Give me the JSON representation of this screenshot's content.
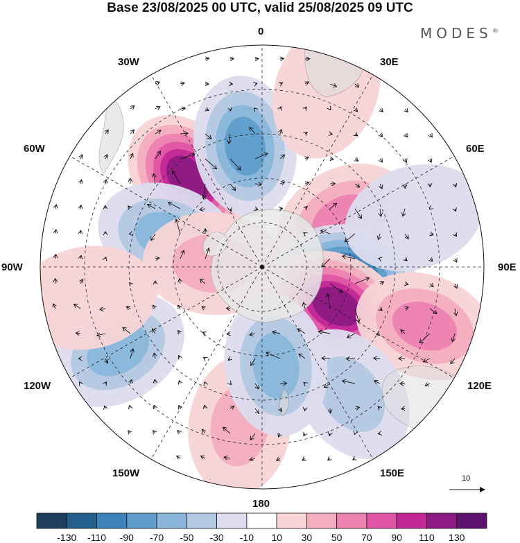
{
  "title": "Base 23/08/2025 00 UTC, valid 25/08/2025 09 UTC",
  "brand": "MODES",
  "brand_mark": "®",
  "longitude_labels": {
    "lon_0": "0",
    "lon_30e": "30E",
    "lon_60e": "60E",
    "lon_90e": "90E",
    "lon_120e": "120E",
    "lon_150e": "150E",
    "lon_180": "180",
    "lon_150w": "150W",
    "lon_120w": "120W",
    "lon_90w": "90W",
    "lon_60w": "60W",
    "lon_30w": "30W"
  },
  "reference_vector": "10",
  "colorbar": {
    "colors": [
      "#1f3d5c",
      "#235f8c",
      "#3d82b8",
      "#5f9ecc",
      "#89b6da",
      "#b3c8e2",
      "#dcdcee",
      "#ffffff",
      "#f8d4d6",
      "#f3aec0",
      "#ec82b0",
      "#e055a6",
      "#c42896",
      "#8c1a82",
      "#5e1270"
    ],
    "labels": [
      "-130",
      "-110",
      "-90",
      "-70",
      "-50",
      "-30",
      "-10",
      "10",
      "30",
      "50",
      "70",
      "90",
      "110",
      "130"
    ]
  },
  "field_anomalies": [
    {
      "name": "pos-30w-60w",
      "lon": -40,
      "r": 0.52,
      "value": 125
    },
    {
      "name": "neg-0-10w",
      "lon": -8,
      "r": 0.55,
      "value": -85
    },
    {
      "name": "neg-60w-80w",
      "lon": -72,
      "r": 0.45,
      "value": -70
    },
    {
      "name": "pos-80w",
      "lon": -86,
      "r": 0.22,
      "value": 45
    },
    {
      "name": "pos-45e",
      "lon": 60,
      "r": 0.42,
      "value": 75
    },
    {
      "name": "neg-90e",
      "lon": 96,
      "r": 0.38,
      "value": -125
    },
    {
      "name": "pos-115e",
      "lon": 118,
      "r": 0.38,
      "value": 125
    },
    {
      "name": "pos-120e-outer",
      "lon": 110,
      "r": 0.78,
      "value": 60
    },
    {
      "name": "neg-150e",
      "lon": 145,
      "r": 0.7,
      "value": -55
    },
    {
      "name": "pos-170w",
      "lon": -172,
      "r": 0.72,
      "value": 50
    },
    {
      "name": "neg-175e",
      "lon": 172,
      "r": 0.45,
      "value": -70
    },
    {
      "name": "neg-120w",
      "lon": -120,
      "r": 0.75,
      "value": -60
    },
    {
      "name": "pos-100w",
      "lon": -100,
      "r": 0.8,
      "value": 30
    },
    {
      "name": "pos-20e",
      "lon": 20,
      "r": 0.85,
      "value": 20
    },
    {
      "name": "neg-75e",
      "lon": 72,
      "r": 0.72,
      "value": -30
    }
  ]
}
